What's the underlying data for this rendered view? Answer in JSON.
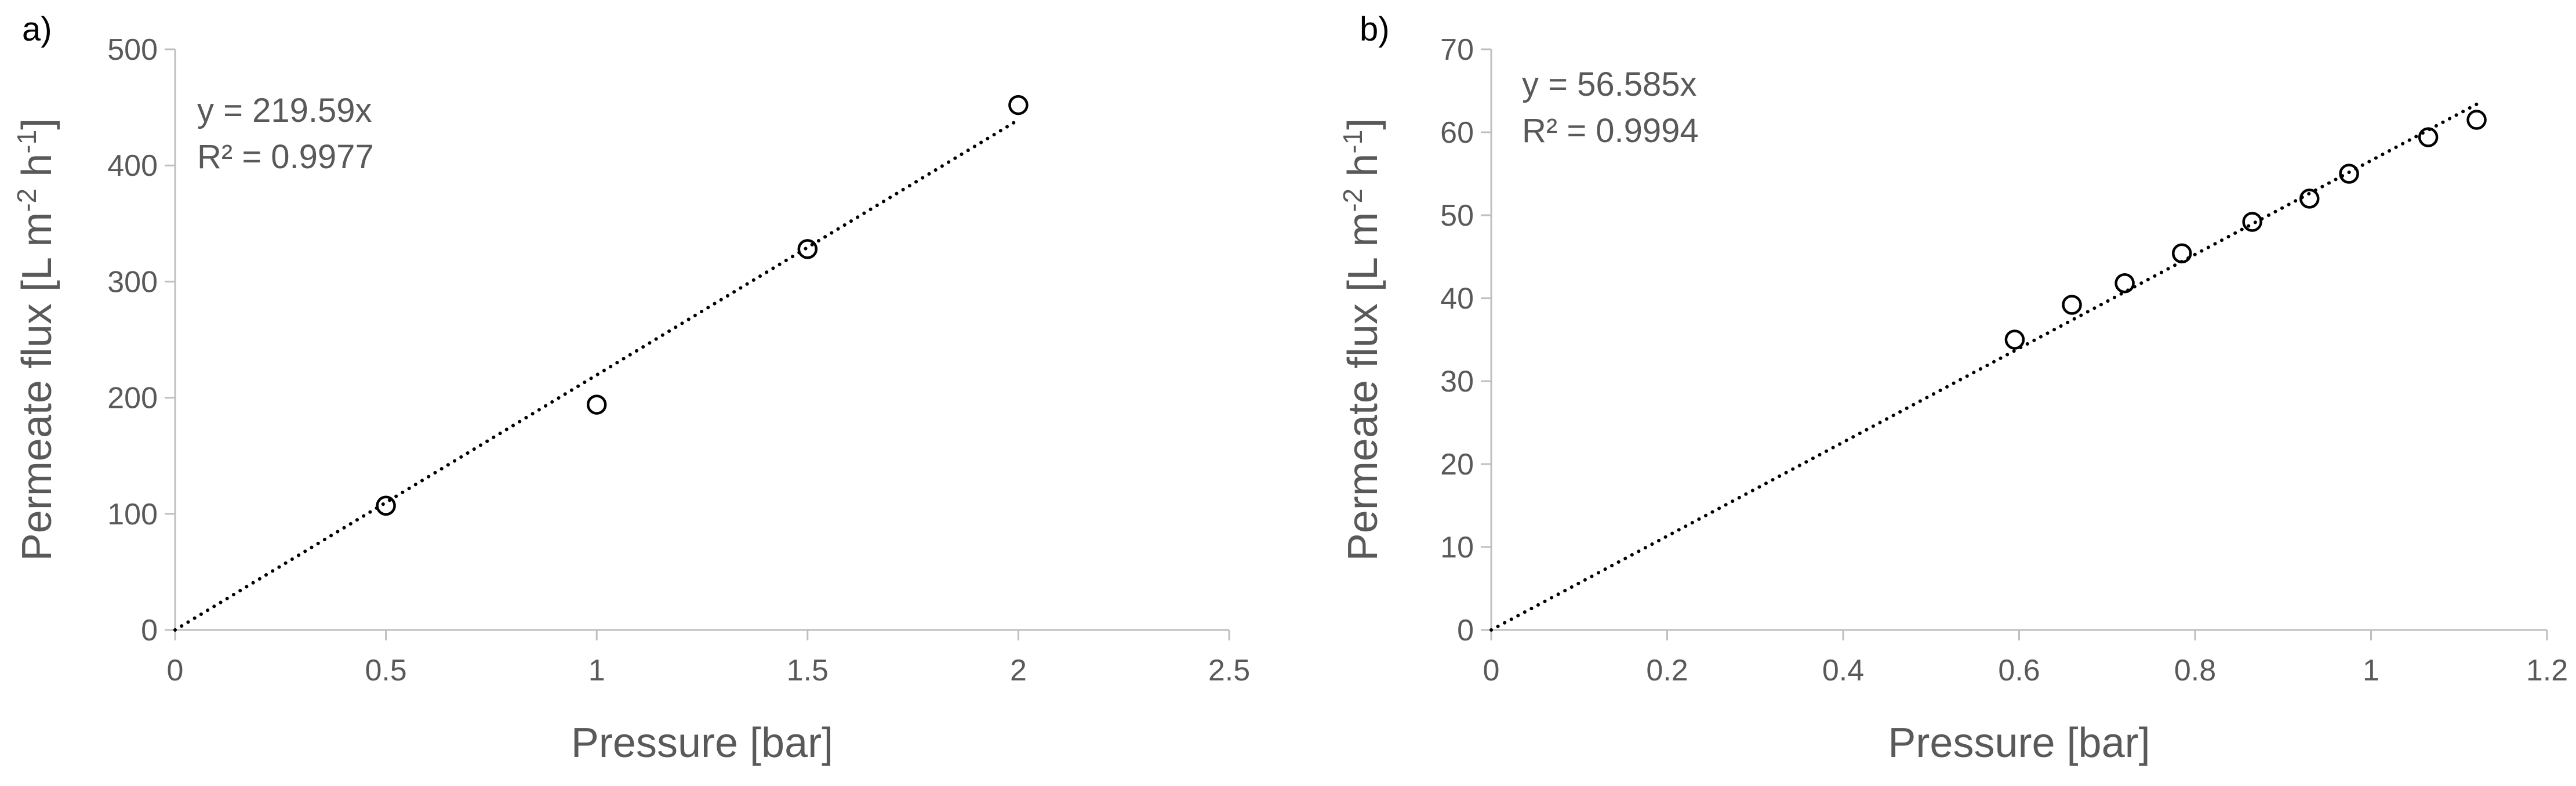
{
  "chart_data": [
    {
      "type": "scatter",
      "panel_label": "a)",
      "xlabel": "Pressure [bar]",
      "ylabel": {
        "base": "Permeate flux [L m",
        "sup1": "-2",
        "mid": " h",
        "sup2": "-1",
        "end": "]"
      },
      "xlim": [
        0,
        2.5
      ],
      "ylim": [
        0,
        500
      ],
      "xticks": [
        0,
        0.5,
        1,
        1.5,
        2,
        2.5
      ],
      "xtick_labels": [
        "0",
        "0.5",
        "1",
        "1.5",
        "2",
        "2.5"
      ],
      "yticks": [
        0,
        100,
        200,
        300,
        400,
        500
      ],
      "ytick_labels": [
        "0",
        "100",
        "200",
        "300",
        "400",
        "500"
      ],
      "grid": false,
      "marker": "open-circle",
      "series": [
        {
          "x": [
            0.5,
            1.0,
            1.5,
            2.0
          ],
          "y": [
            107,
            194,
            328,
            452
          ]
        }
      ],
      "trendline": {
        "type": "linear-through-origin",
        "slope": 219.59,
        "x_range": [
          0,
          2.0
        ],
        "style": "dotted"
      },
      "annotations": [
        "y = 219.59x",
        "R² = 0.9977"
      ]
    },
    {
      "type": "scatter",
      "panel_label": "b)",
      "xlabel": "Pressure [bar]",
      "ylabel": {
        "base": "Permeate flux [L m",
        "sup1": "-2",
        "mid": " h",
        "sup2": "-1",
        "end": "]"
      },
      "xlim": [
        0,
        1.2
      ],
      "ylim": [
        0,
        70
      ],
      "xticks": [
        0,
        0.2,
        0.4,
        0.6,
        0.8,
        1.0,
        1.2
      ],
      "xtick_labels": [
        "0",
        "0.2",
        "0.4",
        "0.6",
        "0.8",
        "1",
        "1.2"
      ],
      "yticks": [
        0,
        10,
        20,
        30,
        40,
        50,
        60,
        70
      ],
      "ytick_labels": [
        "0",
        "10",
        "20",
        "30",
        "40",
        "50",
        "60",
        "70"
      ],
      "grid": false,
      "marker": "open-circle",
      "series": [
        {
          "x": [
            0.595,
            0.66,
            0.72,
            0.785,
            0.865,
            0.93,
            0.975,
            1.065,
            1.12
          ],
          "y": [
            35.0,
            39.2,
            41.8,
            45.4,
            49.2,
            52.0,
            55.0,
            59.4,
            61.5
          ]
        }
      ],
      "trendline": {
        "type": "linear-through-origin",
        "slope": 56.585,
        "x_range": [
          0,
          1.12
        ],
        "style": "dotted"
      },
      "annotations": [
        "y = 56.585x",
        "R² = 0.9994"
      ]
    }
  ]
}
